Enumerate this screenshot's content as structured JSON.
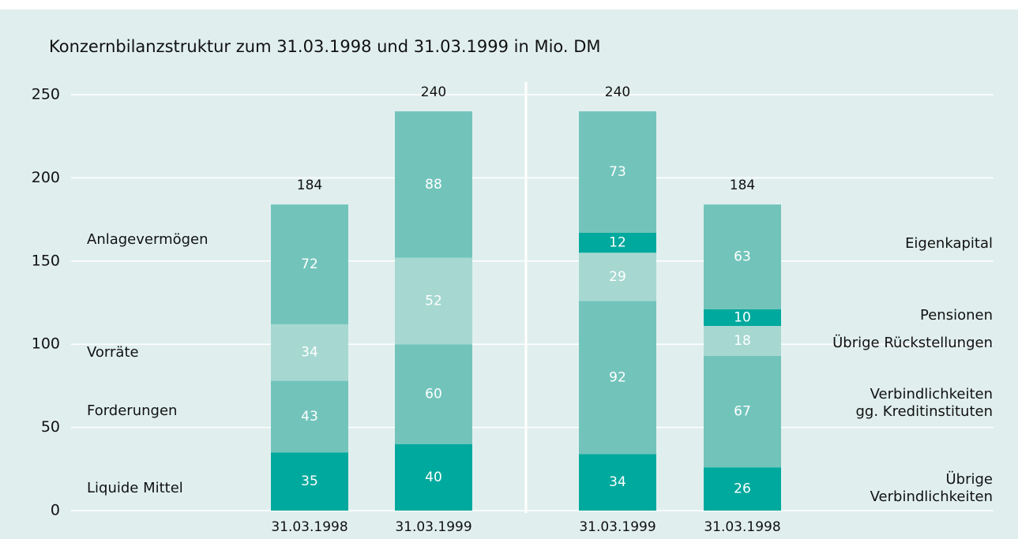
{
  "chart_data": {
    "type": "bar",
    "stacked": true,
    "title": "Konzernbilanzstruktur zum 31.03.1998 und 31.03.1999 in Mio. DM",
    "categories": [
      "31.03.1998",
      "31.03.1999",
      "31.03.1999",
      "31.03.1998"
    ],
    "series": [
      {
        "name": "Liquide Mittel",
        "color": "#00a99d",
        "values": [
          35,
          40,
          null,
          null
        ]
      },
      {
        "name": "Forderungen",
        "color": "#72c4bb",
        "values": [
          43,
          60,
          null,
          null
        ]
      },
      {
        "name": "Vorräte",
        "color": "#a6d8d1",
        "values": [
          34,
          52,
          null,
          null
        ]
      },
      {
        "name": "Anlagevermögen",
        "color": "#72c4bb",
        "values": [
          72,
          88,
          null,
          null
        ]
      },
      {
        "name": "Übrige\nVerbindlichkeiten",
        "color": "#00a99d",
        "values": [
          null,
          null,
          34,
          26
        ]
      },
      {
        "name": "Verbindlichkeiten\ngg. Kreditinstituten",
        "color": "#72c4bb",
        "values": [
          null,
          null,
          92,
          67
        ]
      },
      {
        "name": "Übrige Rückstellungen",
        "color": "#a6d8d1",
        "values": [
          null,
          null,
          29,
          18
        ]
      },
      {
        "name": "Pensionen",
        "color": "#00a99d",
        "values": [
          null,
          null,
          12,
          10
        ]
      },
      {
        "name": "Eigenkapital",
        "color": "#72c4bb",
        "values": [
          null,
          null,
          73,
          63
        ]
      }
    ],
    "totals": [
      184,
      240,
      240,
      184
    ],
    "ylim": [
      0,
      250
    ],
    "yticks": [
      0,
      50,
      100,
      150,
      200,
      250
    ],
    "grid": true
  }
}
